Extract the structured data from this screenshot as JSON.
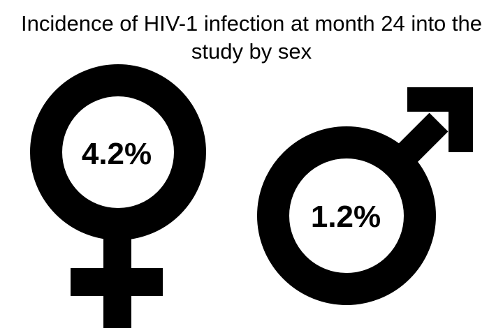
{
  "chart_data": {
    "type": "infographic",
    "title": "Incidence of HIV-1 infection at month 24 into the\nstudy by sex",
    "categories": [
      "female",
      "male"
    ],
    "values": [
      4.2,
      1.2
    ],
    "value_labels": [
      "4.2%",
      "1.2%"
    ],
    "icons": [
      "female-symbol-icon",
      "male-symbol-icon"
    ]
  },
  "colors": {
    "symbol": "#000000",
    "background": "#ffffff"
  }
}
